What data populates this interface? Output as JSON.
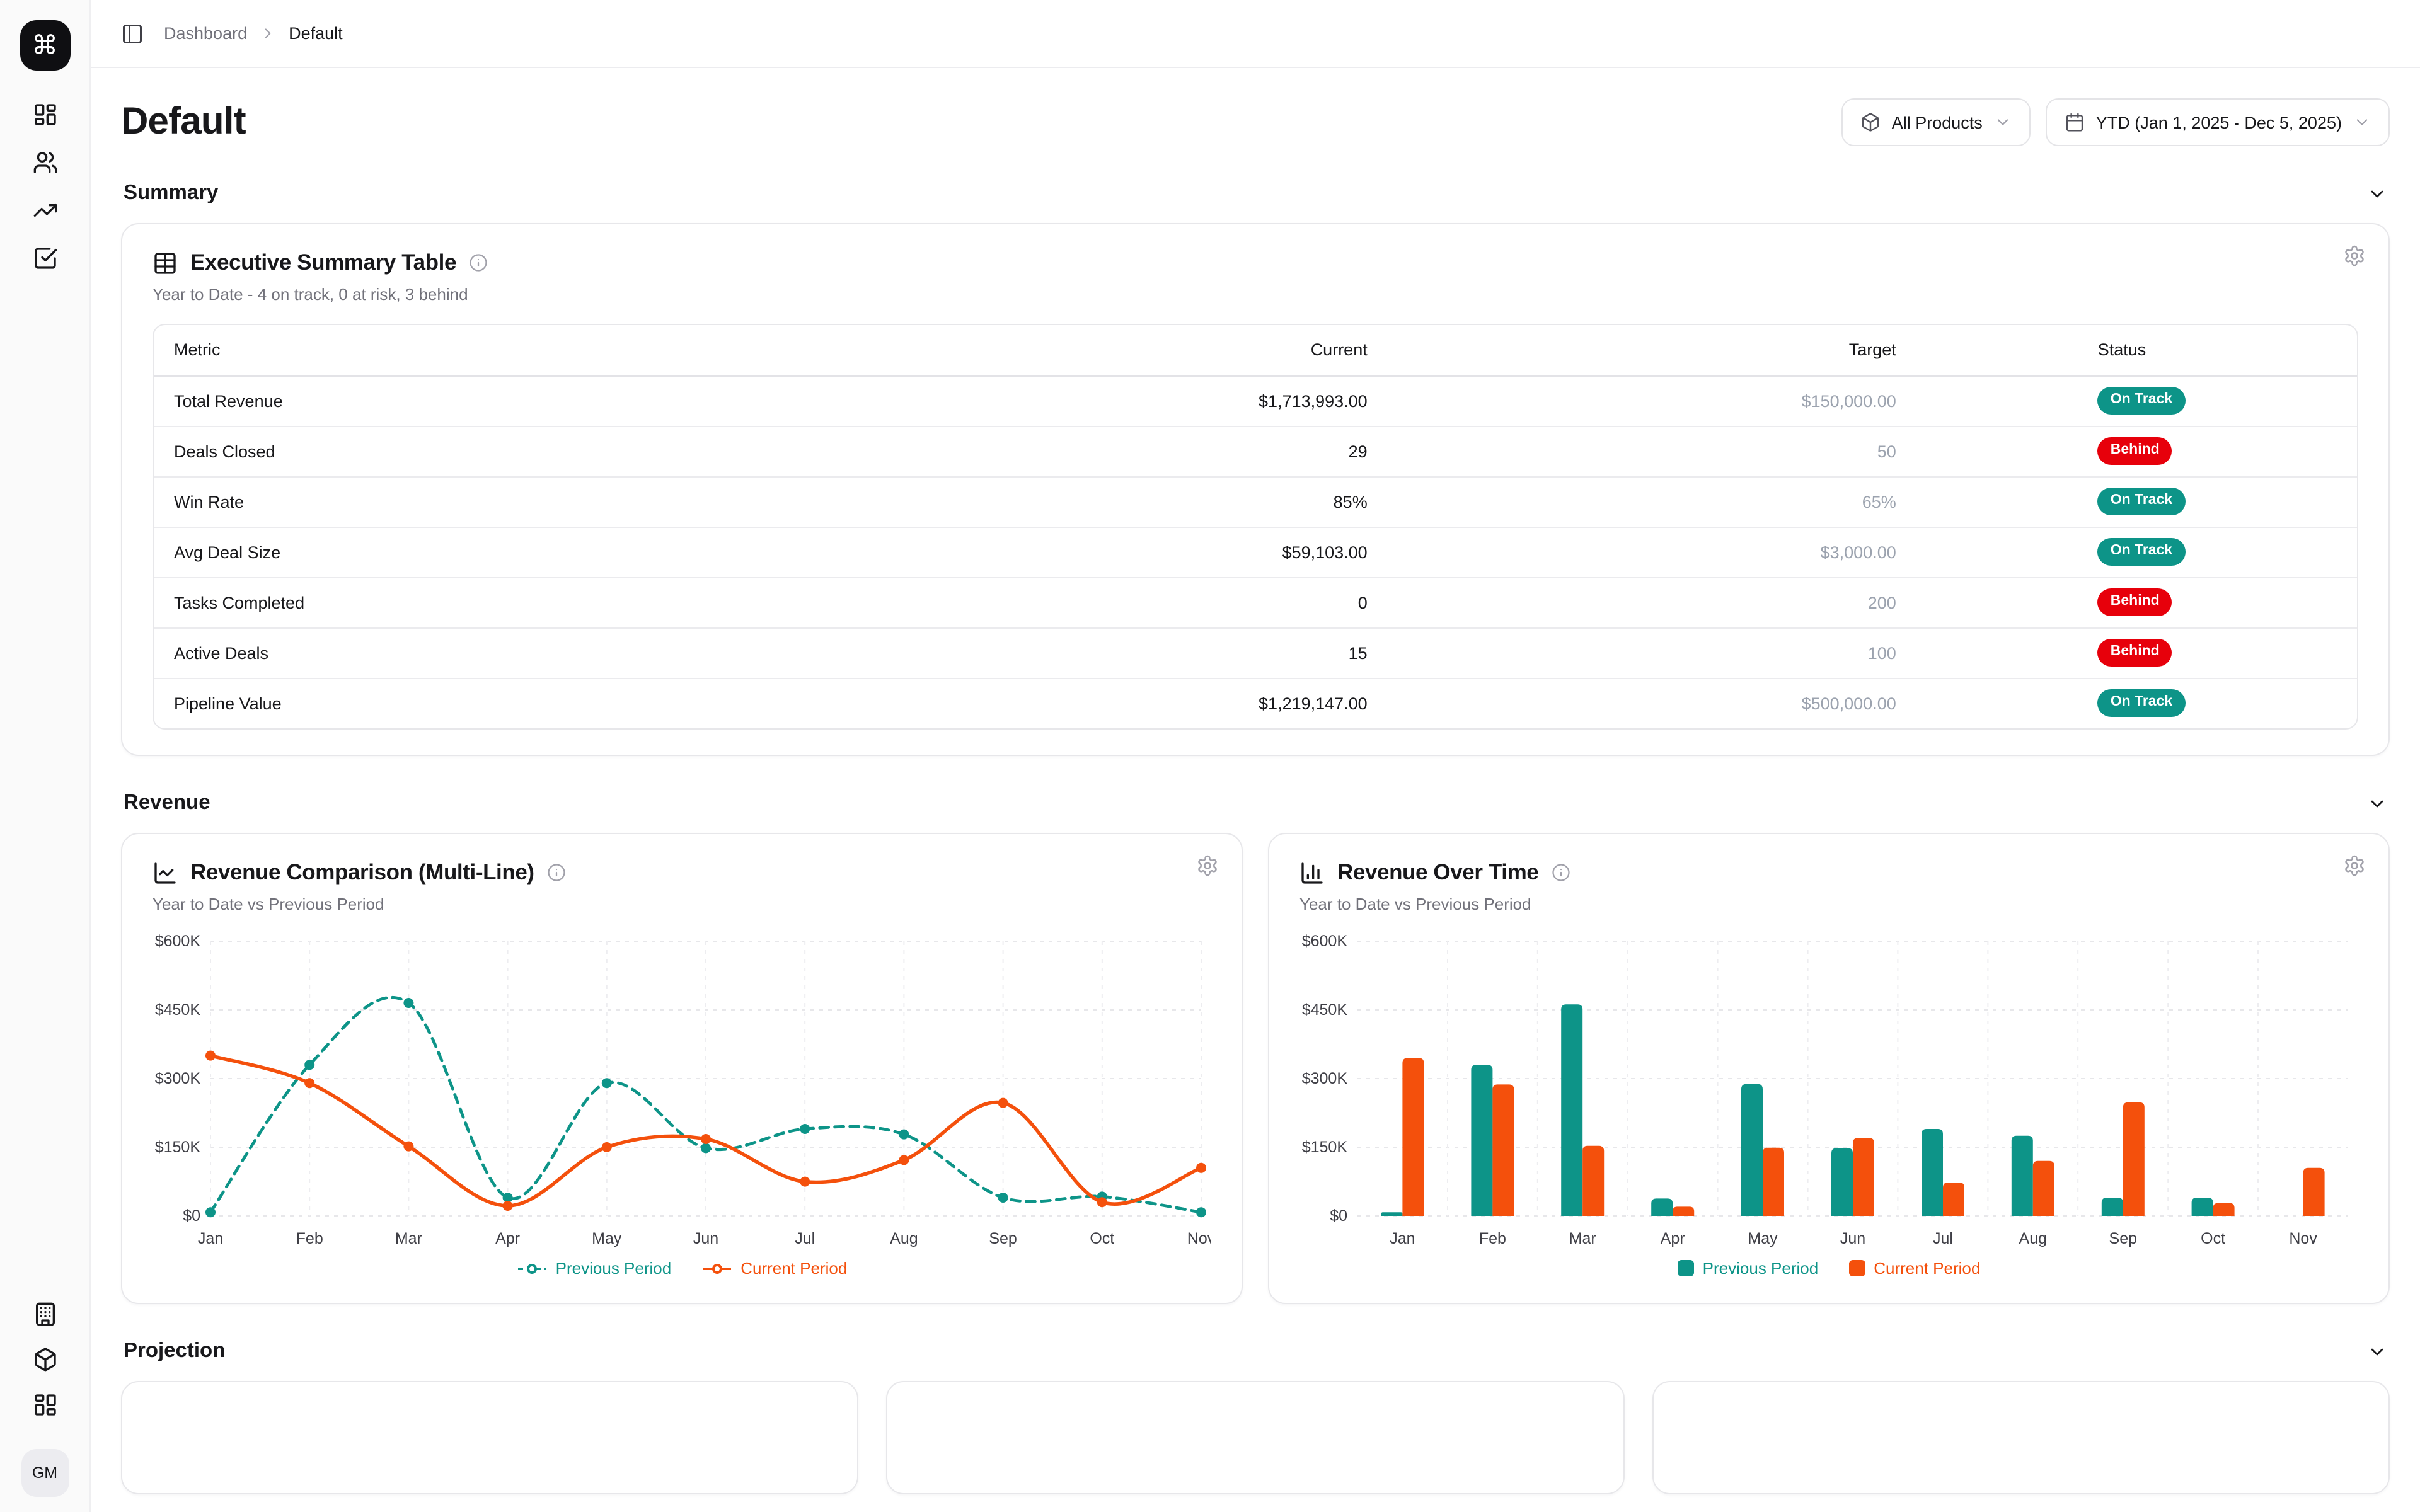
{
  "sidebar": {
    "logo_icon": "command-icon",
    "top_items": [
      {
        "icon": "layout-dashboard-icon"
      },
      {
        "icon": "users-icon"
      },
      {
        "icon": "trending-up-icon"
      },
      {
        "icon": "check-square-icon"
      }
    ],
    "bottom_items": [
      {
        "icon": "building-icon"
      },
      {
        "icon": "package-icon"
      },
      {
        "icon": "layout-grid-icon"
      }
    ],
    "avatar_initials": "GM"
  },
  "breadcrumb": {
    "parent": "Dashboard",
    "current": "Default"
  },
  "header": {
    "title": "Default",
    "product_filter_label": "All Products",
    "date_filter_label": "YTD (Jan 1, 2025 - Dec 5, 2025)"
  },
  "sections": {
    "summary": "Summary",
    "revenue": "Revenue",
    "projection": "Projection"
  },
  "summary_card": {
    "title": "Executive Summary Table",
    "subtitle": "Year to Date - 4 on track, 0 at risk, 3 behind",
    "columns": [
      "Metric",
      "Current",
      "Target",
      "Status"
    ],
    "rows": [
      {
        "metric": "Total Revenue",
        "current": "$1,713,993.00",
        "target": "$150,000.00",
        "status": "On Track"
      },
      {
        "metric": "Deals Closed",
        "current": "29",
        "target": "50",
        "status": "Behind"
      },
      {
        "metric": "Win Rate",
        "current": "85%",
        "target": "65%",
        "status": "On Track"
      },
      {
        "metric": "Avg Deal Size",
        "current": "$59,103.00",
        "target": "$3,000.00",
        "status": "On Track"
      },
      {
        "metric": "Tasks Completed",
        "current": "0",
        "target": "200",
        "status": "Behind"
      },
      {
        "metric": "Active Deals",
        "current": "15",
        "target": "100",
        "status": "Behind"
      },
      {
        "metric": "Pipeline Value",
        "current": "$1,219,147.00",
        "target": "$500,000.00",
        "status": "On Track"
      }
    ],
    "status_colors": {
      "On Track": "#0d9488",
      "Behind": "#e7000b"
    }
  },
  "chart_data": [
    {
      "type": "line",
      "title": "Revenue Comparison (Multi-Line)",
      "subtitle": "Year to Date vs Previous Period",
      "categories": [
        "Jan",
        "Feb",
        "Mar",
        "Apr",
        "May",
        "Jun",
        "Jul",
        "Aug",
        "Sep",
        "Oct",
        "Nov"
      ],
      "series": [
        {
          "name": "Previous Period",
          "color": "#0d9488",
          "style": "dashed",
          "values": [
            8000,
            330000,
            465000,
            40000,
            290000,
            148000,
            190000,
            178000,
            40000,
            42000,
            8000
          ]
        },
        {
          "name": "Current Period",
          "color": "#f4500c",
          "style": "solid",
          "values": [
            350000,
            290000,
            152000,
            22000,
            150000,
            168000,
            75000,
            122000,
            247000,
            30000,
            105000
          ]
        }
      ],
      "ylim": [
        0,
        600000
      ],
      "yticks": [
        "$0",
        "$150K",
        "$300K",
        "$450K",
        "$600K"
      ],
      "grid": true,
      "legend_position": "bottom"
    },
    {
      "type": "bar",
      "title": "Revenue Over Time",
      "subtitle": "Year to Date vs Previous Period",
      "categories": [
        "Jan",
        "Feb",
        "Mar",
        "Apr",
        "May",
        "Jun",
        "Jul",
        "Aug",
        "Sep",
        "Oct",
        "Nov"
      ],
      "series": [
        {
          "name": "Previous Period",
          "color": "#0d9488",
          "values": [
            8000,
            330000,
            462000,
            38000,
            288000,
            148000,
            190000,
            175000,
            40000,
            40000,
            0
          ]
        },
        {
          "name": "Current Period",
          "color": "#f4500c",
          "values": [
            345000,
            287000,
            153000,
            20000,
            149000,
            170000,
            73000,
            120000,
            248000,
            28000,
            105000
          ]
        }
      ],
      "ylim": [
        0,
        600000
      ],
      "yticks": [
        "$0",
        "$150K",
        "$300K",
        "$450K",
        "$600K"
      ],
      "grid": true,
      "legend_position": "bottom"
    }
  ],
  "colors": {
    "accent_teal": "#0d9488",
    "accent_orange": "#f4500c",
    "status_on_track": "#0d9488",
    "status_behind": "#e7000b"
  }
}
